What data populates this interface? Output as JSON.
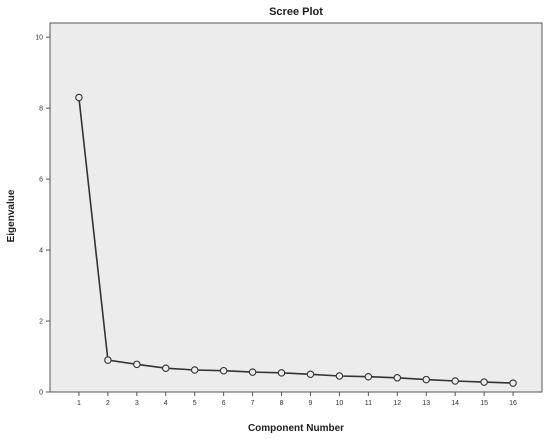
{
  "chart_data": {
    "type": "line",
    "title": "Scree Plot",
    "xlabel": "Component Number",
    "ylabel": "Eigenvalue",
    "x": [
      1,
      2,
      3,
      4,
      5,
      6,
      7,
      8,
      9,
      10,
      11,
      12,
      13,
      14,
      15,
      16
    ],
    "values": [
      8.3,
      0.9,
      0.78,
      0.67,
      0.62,
      0.6,
      0.56,
      0.54,
      0.5,
      0.45,
      0.43,
      0.4,
      0.35,
      0.31,
      0.28,
      0.25
    ],
    "xlim": [
      0,
      17
    ],
    "ylim": [
      0,
      10.4
    ],
    "yticks": [
      0,
      2,
      4,
      6,
      8,
      10
    ],
    "xticks": [
      1,
      2,
      3,
      4,
      5,
      6,
      7,
      8,
      9,
      10,
      11,
      12,
      13,
      14,
      15,
      16
    ],
    "grid": false,
    "legend": false,
    "marker": "open-circle",
    "colors": {
      "plot_background": "#ececec",
      "line": "#333333",
      "frame": "#555555"
    }
  }
}
